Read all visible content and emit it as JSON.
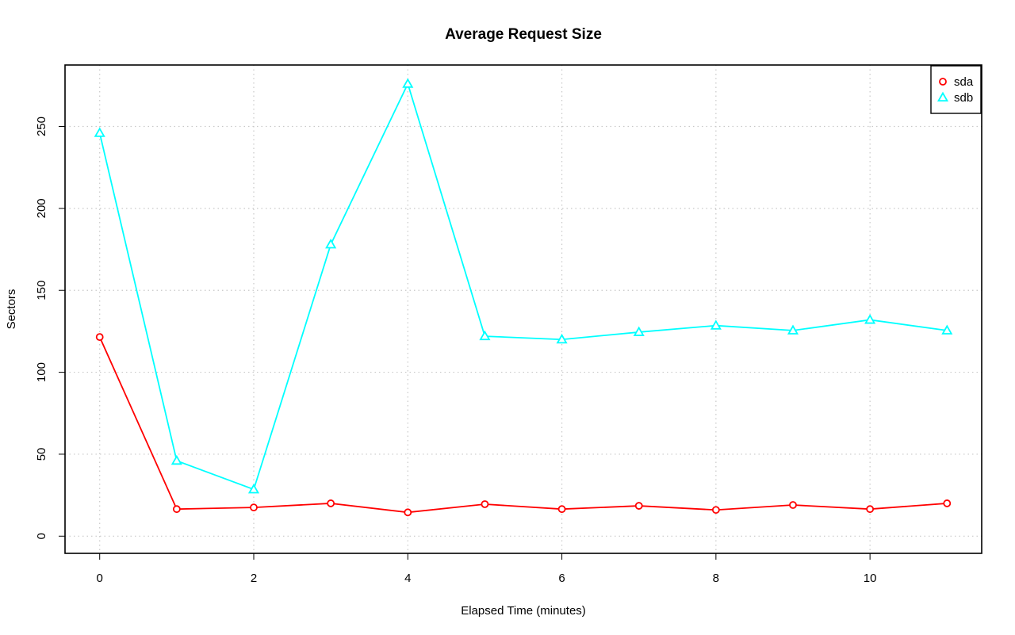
{
  "chart_data": {
    "type": "line",
    "title": "Average Request Size",
    "xlabel": "Elapsed Time (minutes)",
    "ylabel": "Sectors",
    "xlim": [
      -0.45,
      11.45
    ],
    "ylim": [
      -10.5,
      287.5
    ],
    "x_ticks": [
      0,
      2,
      4,
      6,
      8,
      10
    ],
    "y_ticks": [
      0,
      50,
      100,
      150,
      200,
      250
    ],
    "x": [
      0,
      1,
      2,
      3,
      4,
      5,
      6,
      7,
      8,
      9,
      10,
      11
    ],
    "grid": true,
    "legend_position": "top-right",
    "series": [
      {
        "name": "sda",
        "color": "#ff0000",
        "marker": "circle",
        "values": [
          121.5,
          16.5,
          17.5,
          20,
          14.5,
          19.5,
          16.5,
          18.5,
          16,
          19,
          16.5,
          20
        ]
      },
      {
        "name": "sdb",
        "color": "#00ffff",
        "marker": "triangle",
        "values": [
          246,
          46,
          28.5,
          178,
          276,
          122,
          120,
          124.5,
          128.5,
          125.5,
          132,
          125.5
        ]
      }
    ]
  }
}
